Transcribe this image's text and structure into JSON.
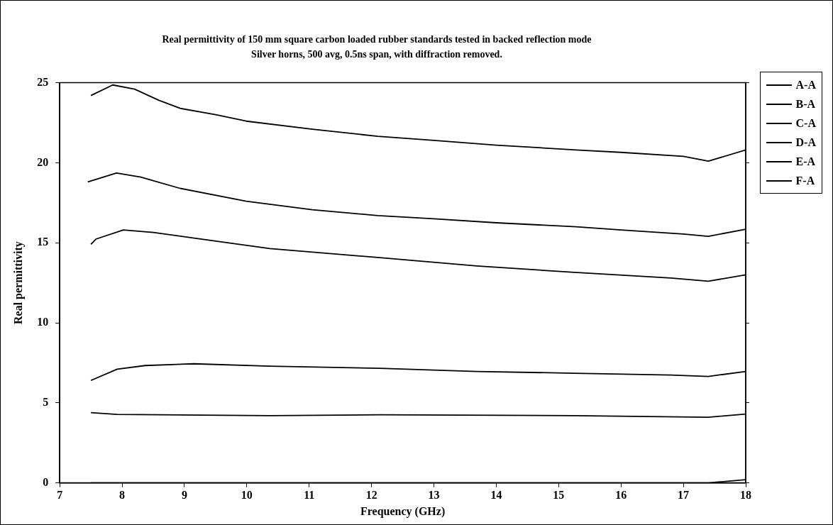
{
  "chart_data": {
    "type": "line",
    "title": "Real permittivity of 150 mm square carbon loaded rubber standards tested in backed reflection mode",
    "subtitle": "Silver horns, 500 avg, 0.5ns span, with diffraction removed.",
    "xlabel": "Frequency (GHz)",
    "ylabel": "Real permittivity",
    "xlim": [
      7,
      18
    ],
    "xticks": [
      7,
      8,
      9,
      10,
      11,
      12,
      13,
      14,
      15,
      16,
      17,
      18
    ],
    "ylim": [
      0,
      25
    ],
    "yticks": [
      0,
      5,
      10,
      15,
      20,
      25
    ],
    "grid": false,
    "legend": "top right",
    "marker": "none",
    "line_style": "solid",
    "series": [
      {
        "name": "A-A",
        "color": "#000000",
        "x": [
          7.5,
          7.85,
          8.2,
          8.59,
          8.93,
          9.5,
          9.99,
          11.05,
          12.1,
          13,
          14,
          15.28,
          16,
          17,
          17.4,
          18
        ],
        "values": [
          24.2,
          24.86,
          24.6,
          23.9,
          23.4,
          23.0,
          22.6,
          22.1,
          21.65,
          21.4,
          21.1,
          20.8,
          20.65,
          20.4,
          20.1,
          20.8
        ]
      },
      {
        "name": "B-A",
        "color": "#000000",
        "x": [
          7.45,
          7.91,
          8.3,
          8.93,
          9.99,
          11.05,
          12.1,
          13,
          14,
          15.28,
          16,
          17,
          17.4,
          18
        ],
        "values": [
          18.8,
          19.36,
          19.1,
          18.4,
          17.6,
          17.06,
          16.7,
          16.5,
          16.25,
          16.0,
          15.8,
          15.55,
          15.4,
          15.85
        ]
      },
      {
        "name": "C-A",
        "color": "#000000",
        "x": [
          7.5,
          7.58,
          8.02,
          8.5,
          9.32,
          10.37,
          12.13,
          13.69,
          15.25,
          16.8,
          17.4,
          18
        ],
        "values": [
          14.9,
          15.23,
          15.8,
          15.65,
          15.2,
          14.64,
          14.07,
          13.55,
          13.15,
          12.8,
          12.6,
          13.0
        ]
      },
      {
        "name": "D-A",
        "color": "#000000",
        "x": [
          7.5,
          7.92,
          8.37,
          9.15,
          10.37,
          12.13,
          13.69,
          15.25,
          16.8,
          17.4,
          18
        ],
        "values": [
          6.4,
          7.1,
          7.33,
          7.44,
          7.29,
          7.16,
          6.96,
          6.85,
          6.74,
          6.65,
          6.96
        ]
      },
      {
        "name": "E-A",
        "color": "#000000",
        "x": [
          7.5,
          7.92,
          10.37,
          12.13,
          15.25,
          17.4,
          18
        ],
        "values": [
          4.39,
          4.28,
          4.2,
          4.25,
          4.2,
          4.1,
          4.3
        ]
      },
      {
        "name": "F-A",
        "color": "#000000",
        "x": [
          7.5,
          17.4,
          18
        ],
        "values": [
          0,
          0,
          0.2
        ]
      }
    ]
  }
}
